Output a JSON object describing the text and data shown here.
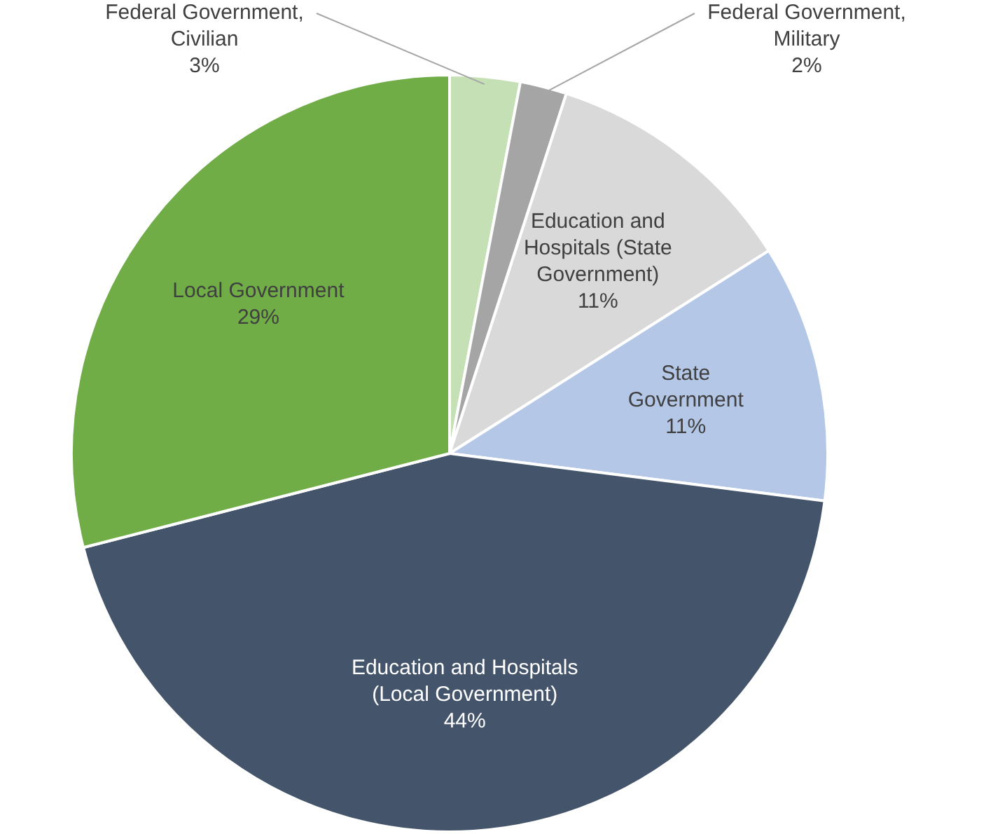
{
  "chart_data": {
    "type": "pie",
    "categories": [
      "Federal Government, Civilian",
      "Federal Government, Military",
      "Education and Hospitals (State Government)",
      "State Government",
      "Education and Hospitals (Local Government)",
      "Local Government"
    ],
    "values": [
      3,
      2,
      11,
      11,
      44,
      29
    ],
    "colors": [
      "#c5e0b4",
      "#a5a5a5",
      "#d9d9d9",
      "#b4c7e7",
      "#44546a",
      "#70ad47"
    ],
    "value_labels": [
      "3%",
      "2%",
      "11%",
      "11%",
      "44%",
      "29%"
    ],
    "legend": false
  }
}
